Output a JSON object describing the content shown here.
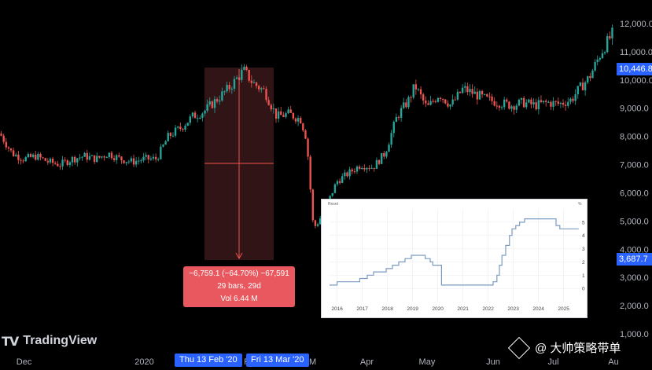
{
  "app": {
    "brand": "TradingView"
  },
  "colors": {
    "up": "#26a69a",
    "down": "#ef5350",
    "accent": "#2962ff",
    "measure": "#e8585e",
    "bg": "#000000",
    "inset_line": "#7a9ac0"
  },
  "price_axis": {
    "labels": [
      "12,000.0",
      "11,000.0",
      "10,000.0",
      "9,000.0",
      "8,000.0",
      "7,000.0",
      "6,000.0",
      "5,000.0",
      "4,000.0",
      "3,000.0",
      "2,000.0",
      "1,000.0"
    ],
    "current_price": "10,446.8",
    "low_marker": "3,687.7"
  },
  "time_axis": {
    "labels": [
      {
        "text": "Dec",
        "t": -2.2
      },
      {
        "text": "2020",
        "t": -0.2
      },
      {
        "text": "F",
        "t": 1.5
      },
      {
        "text": "M",
        "t": 2.6
      },
      {
        "text": "Apr",
        "t": 3.5
      },
      {
        "text": "May",
        "t": 4.5
      },
      {
        "text": "Jun",
        "t": 5.6
      },
      {
        "text": "Jul",
        "t": 6.6
      },
      {
        "text": "Au",
        "t": 7.6
      }
    ],
    "selected_start": "Thu 13 Feb '20",
    "selected_end": "Fri 13 Mar '20"
  },
  "measure_tool": {
    "line1": "−6,759.1 (−64.70%) −67,591",
    "line2": "29 bars, 29d",
    "line3": "Vol 6.44 M"
  },
  "watermark": {
    "text": "@ 大帅策略带单"
  },
  "chart_data": [
    {
      "type": "candlestick",
      "title": "",
      "x_unit": "months from 1 Jan 2020",
      "ylim": [
        1000,
        12200
      ],
      "price_path": [
        [
          -2.6,
          8100
        ],
        [
          -2.4,
          7400
        ],
        [
          -2.2,
          7200
        ],
        [
          -2.0,
          7300
        ],
        [
          -1.8,
          7100
        ],
        [
          -1.6,
          7000
        ],
        [
          -1.4,
          7200
        ],
        [
          -1.2,
          7300
        ],
        [
          -1.0,
          7200
        ],
        [
          -0.8,
          7400
        ],
        [
          -0.6,
          7200
        ],
        [
          -0.4,
          7100
        ],
        [
          -0.2,
          7200
        ],
        [
          0.0,
          7200
        ],
        [
          0.2,
          8000
        ],
        [
          0.4,
          8300
        ],
        [
          0.6,
          8700
        ],
        [
          0.8,
          8900
        ],
        [
          1.0,
          9300
        ],
        [
          1.2,
          9700
        ],
        [
          1.4,
          10200
        ],
        [
          1.45,
          10350
        ],
        [
          1.6,
          9900
        ],
        [
          1.8,
          9600
        ],
        [
          2.0,
          8700
        ],
        [
          2.2,
          8800
        ],
        [
          2.4,
          8600
        ],
        [
          2.5,
          7900
        ],
        [
          2.6,
          5000
        ],
        [
          2.65,
          4800
        ],
        [
          2.8,
          5400
        ],
        [
          3.0,
          6400
        ],
        [
          3.2,
          6700
        ],
        [
          3.4,
          7000
        ],
        [
          3.6,
          6900
        ],
        [
          3.8,
          7400
        ],
        [
          4.0,
          8700
        ],
        [
          4.2,
          9300
        ],
        [
          4.3,
          9800
        ],
        [
          4.5,
          9000
        ],
        [
          4.7,
          9500
        ],
        [
          4.9,
          9100
        ],
        [
          5.1,
          9700
        ],
        [
          5.3,
          9500
        ],
        [
          5.5,
          9300
        ],
        [
          5.7,
          9200
        ],
        [
          5.9,
          9100
        ],
        [
          6.1,
          9200
        ],
        [
          6.3,
          9100
        ],
        [
          6.5,
          9200
        ],
        [
          6.7,
          9150
        ],
        [
          6.9,
          9300
        ],
        [
          7.0,
          9600
        ],
        [
          7.2,
          10100
        ],
        [
          7.4,
          11000
        ],
        [
          7.6,
          11700
        ]
      ],
      "measure_range": {
        "start": "Thu 13 Feb '20",
        "end": "Fri 13 Mar '20"
      }
    },
    {
      "type": "line",
      "title": "",
      "header_label": "Reset",
      "y_unit": "%",
      "x": [
        "2016",
        "2017",
        "2018",
        "2019",
        "2020",
        "2021",
        "2022",
        "2023",
        "2024",
        "2025"
      ],
      "x_range": [
        2015.7,
        2025.7
      ],
      "y_ticks": [
        0,
        1,
        2,
        3,
        4,
        5
      ],
      "ylim": [
        -1,
        6
      ],
      "points": [
        [
          2015.7,
          0.25
        ],
        [
          2016.0,
          0.25
        ],
        [
          2016.0,
          0.5
        ],
        [
          2016.9,
          0.5
        ],
        [
          2016.9,
          0.75
        ],
        [
          2017.2,
          0.75
        ],
        [
          2017.2,
          1.0
        ],
        [
          2017.45,
          1.0
        ],
        [
          2017.45,
          1.25
        ],
        [
          2017.95,
          1.25
        ],
        [
          2017.95,
          1.5
        ],
        [
          2018.2,
          1.5
        ],
        [
          2018.2,
          1.75
        ],
        [
          2018.45,
          1.75
        ],
        [
          2018.45,
          2.0
        ],
        [
          2018.7,
          2.0
        ],
        [
          2018.7,
          2.25
        ],
        [
          2018.95,
          2.25
        ],
        [
          2018.95,
          2.5
        ],
        [
          2019.5,
          2.5
        ],
        [
          2019.5,
          2.25
        ],
        [
          2019.7,
          2.25
        ],
        [
          2019.7,
          2.0
        ],
        [
          2019.8,
          2.0
        ],
        [
          2019.8,
          1.75
        ],
        [
          2020.15,
          1.75
        ],
        [
          2020.15,
          0.25
        ],
        [
          2022.2,
          0.25
        ],
        [
          2022.2,
          0.5
        ],
        [
          2022.35,
          0.5
        ],
        [
          2022.35,
          1.0
        ],
        [
          2022.45,
          1.0
        ],
        [
          2022.45,
          1.75
        ],
        [
          2022.55,
          1.75
        ],
        [
          2022.55,
          2.5
        ],
        [
          2022.7,
          2.5
        ],
        [
          2022.7,
          3.25
        ],
        [
          2022.85,
          3.25
        ],
        [
          2022.85,
          4.0
        ],
        [
          2022.95,
          4.0
        ],
        [
          2022.95,
          4.5
        ],
        [
          2023.1,
          4.5
        ],
        [
          2023.1,
          4.75
        ],
        [
          2023.25,
          4.75
        ],
        [
          2023.25,
          5.0
        ],
        [
          2023.45,
          5.0
        ],
        [
          2023.45,
          5.25
        ],
        [
          2024.7,
          5.25
        ],
        [
          2024.7,
          4.75
        ],
        [
          2024.85,
          4.75
        ],
        [
          2024.85,
          4.5
        ],
        [
          2025.6,
          4.5
        ]
      ]
    }
  ]
}
